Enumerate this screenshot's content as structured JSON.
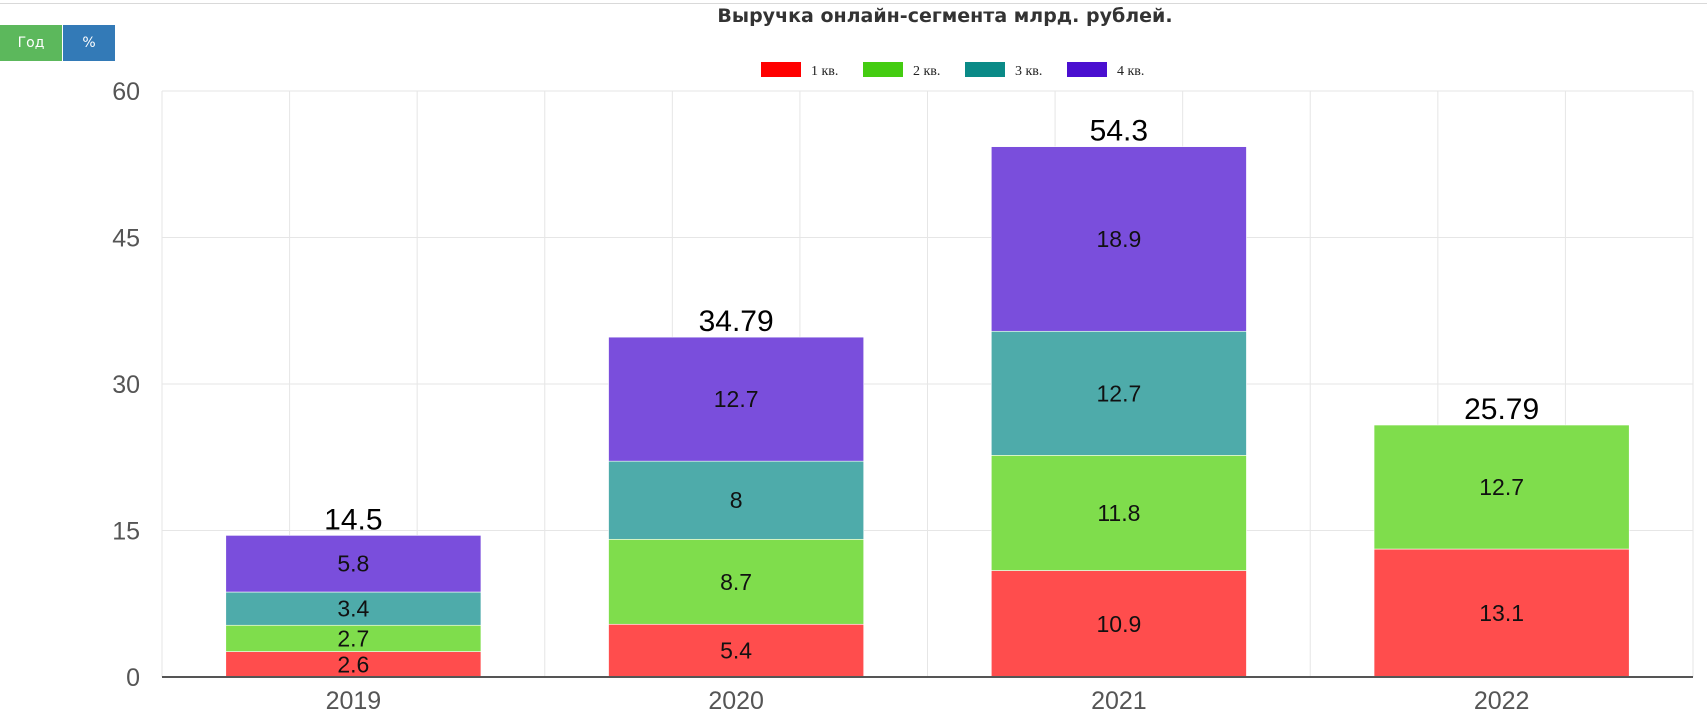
{
  "controls": {
    "year_label": "Год",
    "percent_label": "%"
  },
  "colors": {
    "q1_legend": "#ff0000",
    "q2_legend": "#44cc11",
    "q3_legend": "#0a8a87",
    "q4_legend": "#4a0fd0",
    "q1": "#ff4d4d",
    "q2": "#7fdd4c",
    "q3": "#4eabaa",
    "q4": "#7a4edc"
  },
  "chart_data": {
    "type": "bar",
    "stacked": true,
    "title": "Выручка онлайн-сегмента млрд. рублей.",
    "xlabel": "",
    "ylabel": "",
    "ylim": [
      0,
      60
    ],
    "yticks": [
      "0",
      "15",
      "30",
      "45",
      "60"
    ],
    "categories": [
      "2019",
      "2020",
      "2021",
      "2022"
    ],
    "series": [
      {
        "name": "1 кв.",
        "values": [
          2.6,
          5.4,
          10.9,
          13.1
        ],
        "labels": [
          "2.6",
          "5.4",
          "10.9",
          "13.1"
        ]
      },
      {
        "name": "2 кв.",
        "values": [
          2.7,
          8.7,
          11.8,
          12.7
        ],
        "labels": [
          "2.7",
          "8.7",
          "11.8",
          "12.7"
        ]
      },
      {
        "name": "3 кв.",
        "values": [
          3.4,
          8,
          12.7,
          null
        ],
        "labels": [
          "3.4",
          "8",
          "12.7",
          null
        ]
      },
      {
        "name": "4 кв.",
        "values": [
          5.8,
          12.7,
          18.9,
          null
        ],
        "labels": [
          "5.8",
          "12.7",
          "18.9",
          null
        ]
      }
    ],
    "totals": [
      "14.5",
      "34.79",
      "54.3",
      "25.79"
    ],
    "legend_position": "top-center",
    "grid": true
  }
}
